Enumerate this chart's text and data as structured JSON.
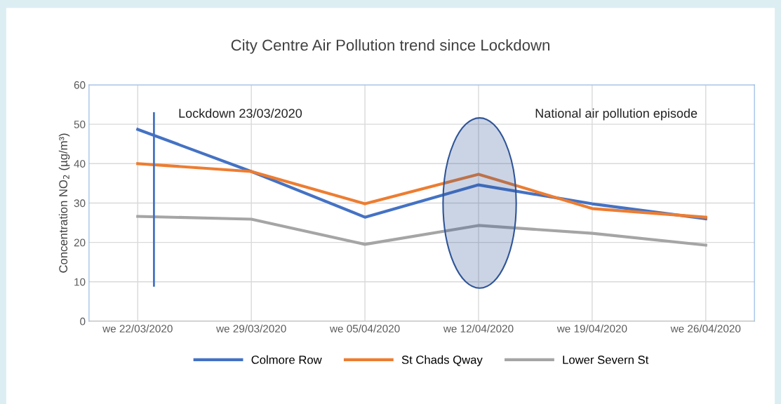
{
  "chart_data": {
    "type": "line",
    "title": "City Centre Air Pollution trend since Lockdown",
    "ylabel": "Concentration NO$_{2}$ (µg/m³)",
    "x": [
      "2020-03-22",
      "2020-03-29",
      "2020-04-05",
      "2020-04-12",
      "2020-04-19",
      "2020-04-26"
    ],
    "xlim": [
      "2020-03-19",
      "2020-04-29"
    ],
    "xticks": [
      {
        "value": "2020-03-22",
        "label": "we 22/03/2020"
      },
      {
        "value": "2020-03-29",
        "label": "we 29/03/2020"
      },
      {
        "value": "2020-04-05",
        "label": "we 05/04/2020"
      },
      {
        "value": "2020-04-12",
        "label": "we 12/04/2020"
      },
      {
        "value": "2020-04-19",
        "label": "we 19/04/2020"
      },
      {
        "value": "2020-04-26",
        "label": "we 26/04/2020"
      }
    ],
    "ylim": [
      0,
      60
    ],
    "yticks": [
      0,
      10,
      20,
      30,
      40,
      50,
      60
    ],
    "series": [
      {
        "name": "Colmore Row",
        "color": "#4472c4",
        "values": [
          48.7,
          38,
          26.4,
          34.6,
          29.8,
          26
        ]
      },
      {
        "name": "St Chads Qway",
        "color": "#ed7d31",
        "values": [
          40,
          38,
          29.8,
          37.3,
          28.6,
          26.4
        ]
      },
      {
        "name": "Lower Severn St",
        "color": "#a5a5a5",
        "values": [
          26.6,
          25.9,
          19.5,
          24.3,
          22.3,
          19.3
        ]
      }
    ],
    "ref_lines": [
      {
        "axis": "x",
        "value": "2020-03-23",
        "label": "Lockdown 23/03/2020",
        "color": "#4472c4"
      }
    ],
    "annotations": [
      "National air pollution episode"
    ],
    "grid": true,
    "legend": "bottom",
    "marker": "none",
    "line_style": "solid"
  }
}
